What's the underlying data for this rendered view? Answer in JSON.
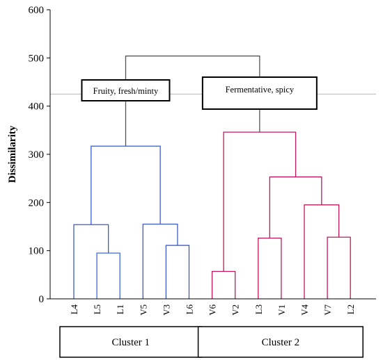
{
  "chart_data": {
    "type": "dendrogram",
    "ylabel": "Dissimilarity",
    "ylim": [
      0,
      600
    ],
    "yticks": [
      0,
      100,
      200,
      300,
      400,
      500,
      600
    ],
    "leaves": [
      "L4",
      "L5",
      "L1",
      "V5",
      "V3",
      "L6",
      "V6",
      "V2",
      "L3",
      "V1",
      "V4",
      "V7",
      "L2"
    ],
    "cut_level": 425,
    "merges": [
      {
        "left": "L5",
        "right": "L1",
        "height": 95,
        "color": "#4169e1"
      },
      {
        "left": "L4",
        "right": "m0",
        "height": 154,
        "color": "#3b5bc8"
      },
      {
        "left": "V3",
        "right": "L6",
        "height": 111,
        "color": "#3b5bc8"
      },
      {
        "left": "V5",
        "right": "m2",
        "height": 155,
        "color": "#3b5bc8"
      },
      {
        "left": "m1",
        "right": "m3",
        "height": 317,
        "color": "#3b5bc8"
      },
      {
        "left": "V6",
        "right": "V2",
        "height": 57,
        "color": "#c2185b"
      },
      {
        "left": "L3",
        "right": "V1",
        "height": 126,
        "color": "#c2185b"
      },
      {
        "left": "V7",
        "right": "L2",
        "height": 128,
        "color": "#c2185b"
      },
      {
        "left": "V4",
        "right": "m7",
        "height": 195,
        "color": "#c2185b"
      },
      {
        "left": "m6",
        "right": "m8",
        "height": 253,
        "color": "#c2185b"
      },
      {
        "left": "m5",
        "right": "m9",
        "height": 346,
        "color": "#c2185b"
      },
      {
        "left": "m4",
        "right": "m10",
        "height": 504,
        "color": "#555555"
      }
    ],
    "annotations": [
      {
        "text": "Fruity, fresh/minty",
        "cluster": "m4"
      },
      {
        "text": "Fermentative, spicy",
        "cluster": "m10"
      }
    ],
    "clusters": [
      {
        "label": "Cluster 1",
        "leaves": [
          "L4",
          "L5",
          "L1",
          "V5",
          "V3",
          "L6"
        ]
      },
      {
        "label": "Cluster 2",
        "leaves": [
          "V6",
          "V2",
          "L3",
          "V1",
          "V4",
          "V7",
          "L2"
        ]
      }
    ]
  }
}
